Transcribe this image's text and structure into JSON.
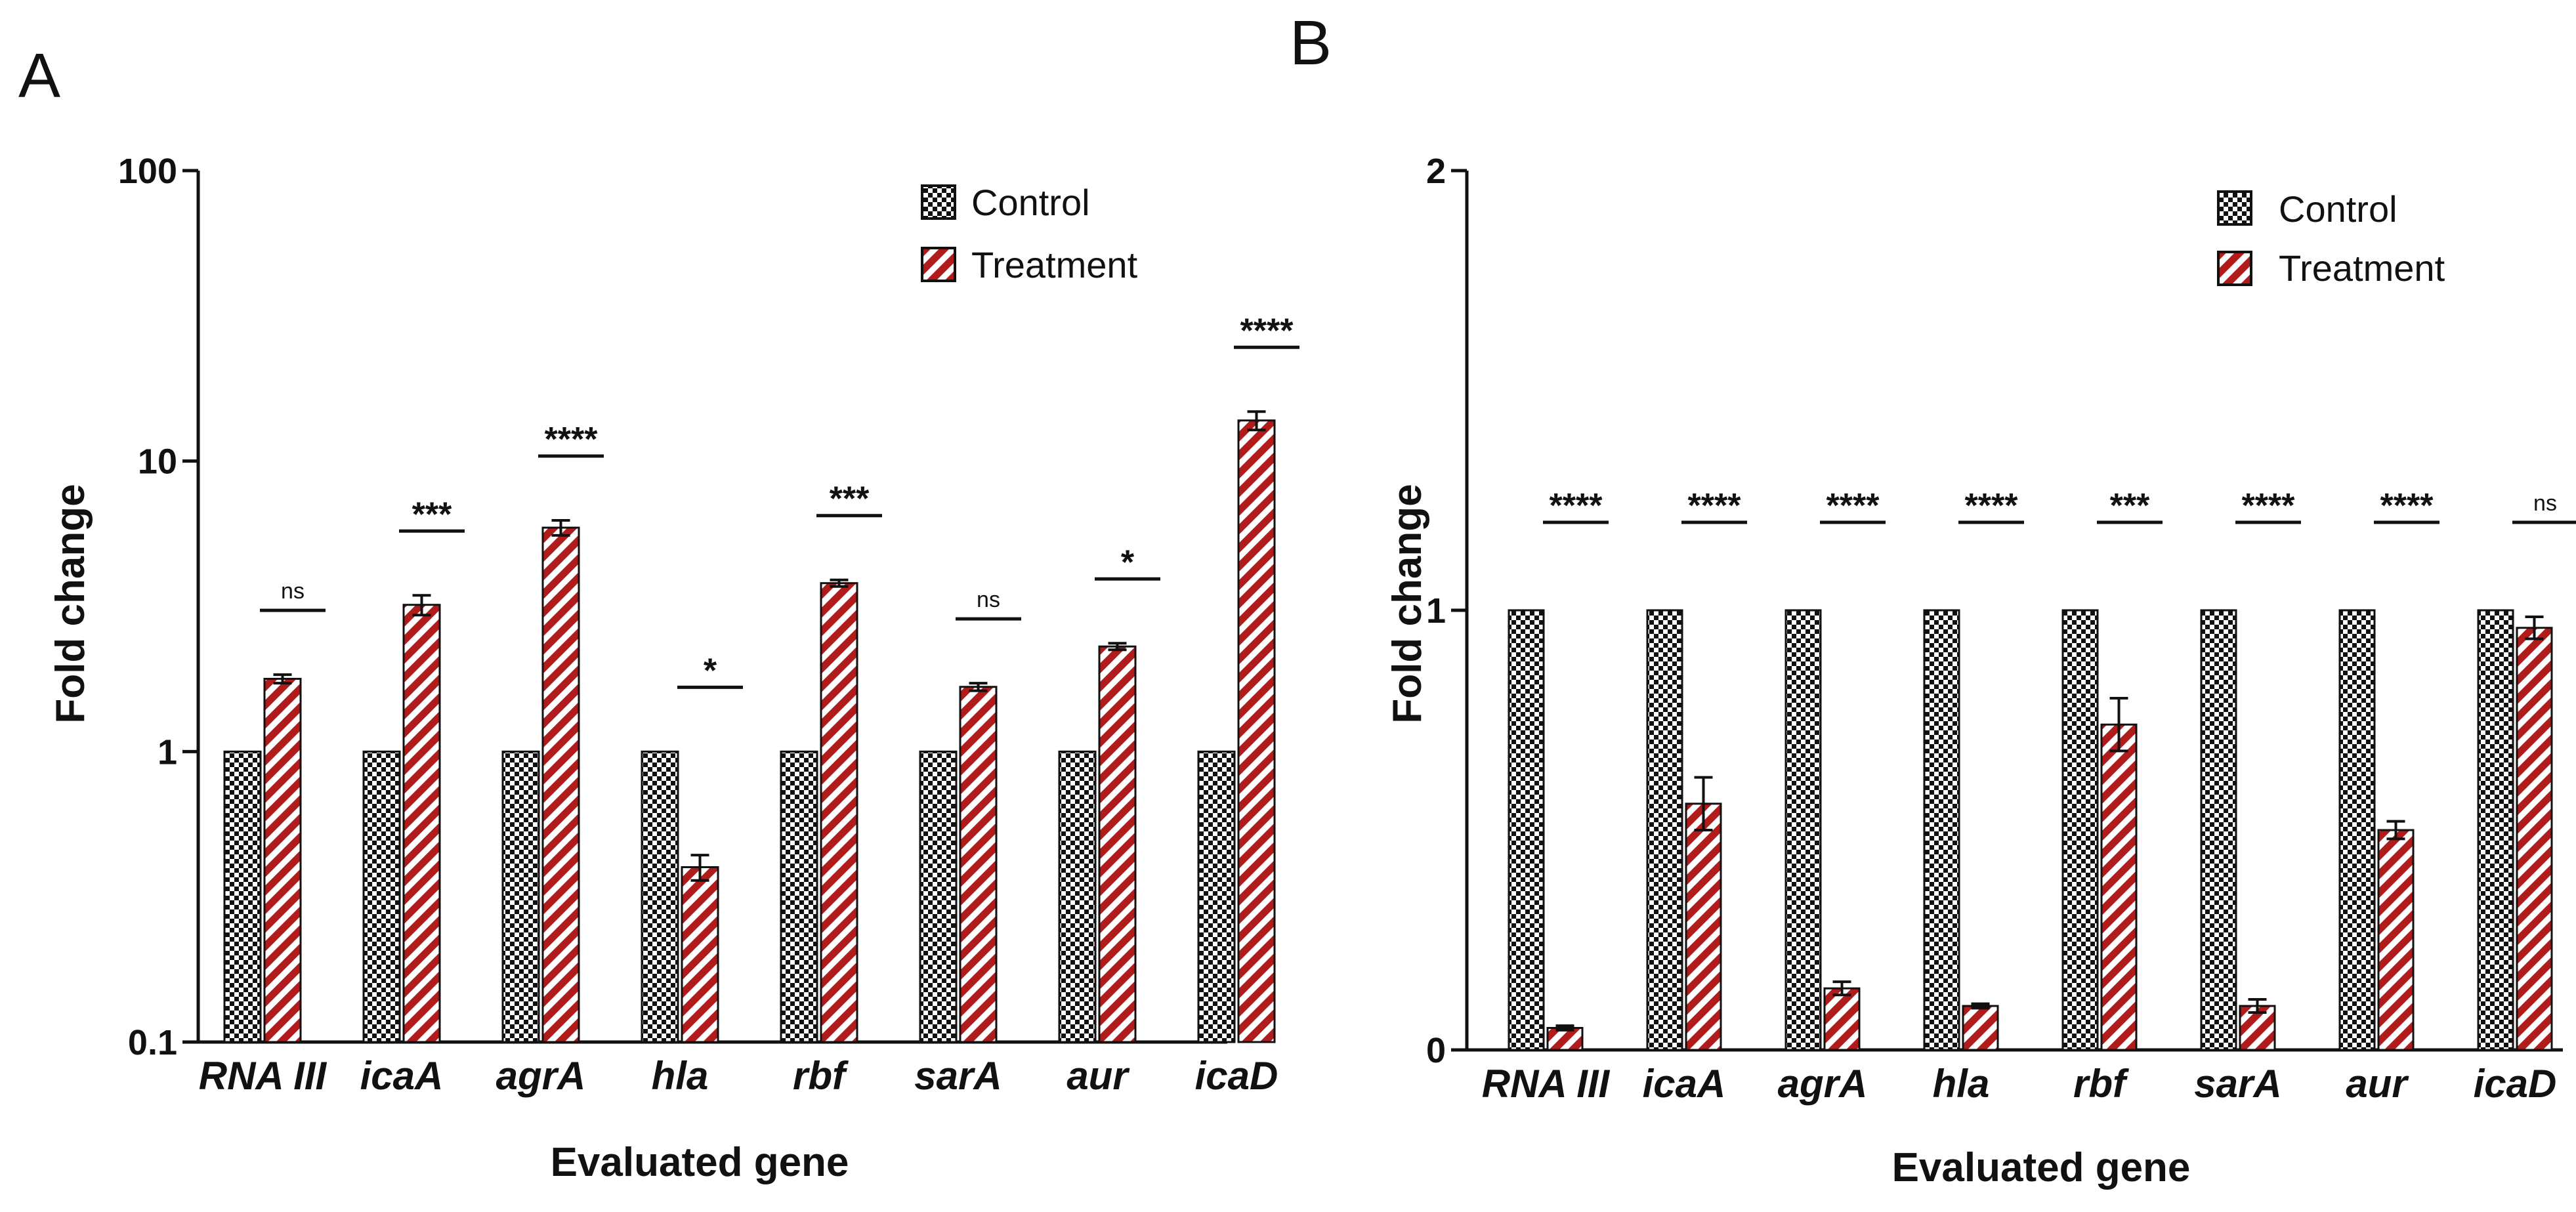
{
  "figure": {
    "panels": [
      {
        "label": "A",
        "chart_data": {
          "type": "bar",
          "scale": "log",
          "title": "",
          "xlabel": "Evaluated gene",
          "ylabel": "Fold change",
          "ylim": [
            0.1,
            100
          ],
          "yticks": [
            0.1,
            1,
            10,
            100
          ],
          "ytick_labels": [
            "0.1",
            "1",
            "10",
            "100"
          ],
          "categories": [
            "RNA III",
            "icaA",
            "agrA",
            "hla",
            "rbf",
            "sarA",
            "aur",
            "icaD"
          ],
          "series": [
            {
              "name": "Control",
              "values": [
                1,
                1,
                1,
                1,
                1,
                1,
                1,
                1
              ],
              "errors": [
                0,
                0,
                0,
                0,
                0,
                0,
                0,
                0
              ]
            },
            {
              "name": "Treatment",
              "values": [
                1.78,
                3.2,
                5.9,
                0.4,
                3.8,
                1.67,
                2.3,
                13.8
              ],
              "errors": [
                0.06,
                0.25,
                0.35,
                0.04,
                0.1,
                0.05,
                0.06,
                1.0
              ]
            }
          ],
          "significance": [
            "ns",
            "***",
            "****",
            "*",
            "***",
            "ns",
            "*",
            "****"
          ],
          "legend": [
            "Control",
            "Treatment"
          ],
          "legend_position": "top-right"
        }
      },
      {
        "label": "B",
        "chart_data": {
          "type": "bar",
          "scale": "linear",
          "title": "",
          "xlabel": "Evaluated gene",
          "ylabel": "Fold change",
          "ylim": [
            0,
            2
          ],
          "yticks": [
            0,
            1,
            2
          ],
          "ytick_labels": [
            "0",
            "1",
            "2"
          ],
          "categories": [
            "RNA III",
            "icaA",
            "agrA",
            "hla",
            "rbf",
            "sarA",
            "aur",
            "icaD"
          ],
          "series": [
            {
              "name": "Control",
              "values": [
                1,
                1,
                1,
                1,
                1,
                1,
                1,
                1
              ],
              "errors": [
                0,
                0,
                0,
                0,
                0,
                0,
                0,
                0
              ]
            },
            {
              "name": "Treatment",
              "values": [
                0.05,
                0.56,
                0.14,
                0.1,
                0.74,
                0.1,
                0.5,
                0.96
              ],
              "errors": [
                0.005,
                0.06,
                0.015,
                0.005,
                0.06,
                0.015,
                0.02,
                0.025
              ]
            }
          ],
          "significance": [
            "****",
            "****",
            "****",
            "****",
            "***",
            "****",
            "****",
            "ns"
          ],
          "legend": [
            "Control",
            "Treatment"
          ],
          "legend_position": "top-right"
        }
      }
    ],
    "colors": {
      "control_fill": "#111111",
      "control_pattern": "#ffffff",
      "treatment_stripe": "#b01c1c",
      "treatment_bg": "#ffffff",
      "axis": "#111111"
    }
  }
}
